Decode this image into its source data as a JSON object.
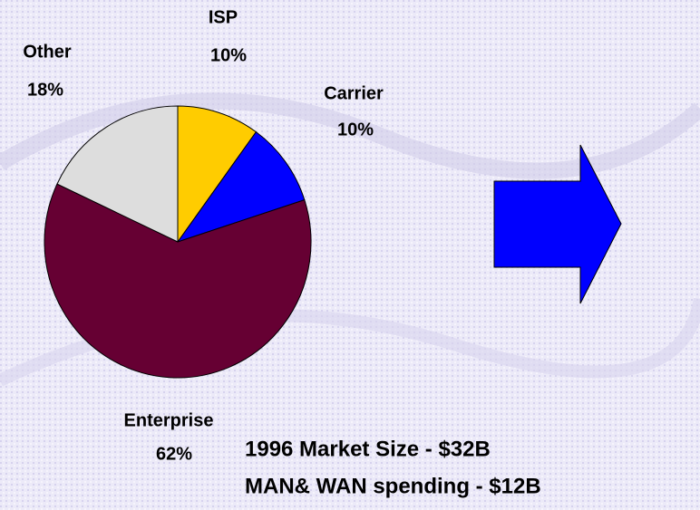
{
  "chart_data": {
    "type": "pie",
    "categories": [
      "ISP",
      "Carrier",
      "Enterprise",
      "Other"
    ],
    "values": [
      10,
      10,
      62,
      18
    ],
    "value_labels": [
      "10%",
      "10%",
      "62%",
      "18%"
    ],
    "colors": [
      "#FFCC00",
      "#0000FF",
      "#660033",
      "#DDDDDD"
    ],
    "annotations": [
      "1996 Market Size - $32B",
      "MAN& WAN spending - $12B"
    ]
  }
}
